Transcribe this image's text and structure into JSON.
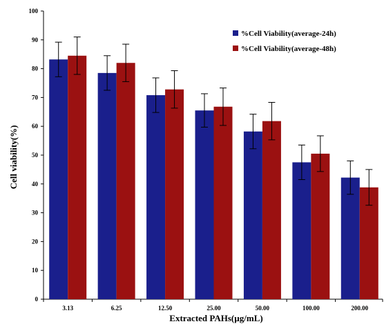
{
  "chart_data": {
    "type": "bar",
    "title": "",
    "xlabel": "Extracted PAHs(µg/mL)",
    "ylabel": "Cell viability(%)",
    "ylim": [
      0,
      100
    ],
    "yticks": [
      "0",
      "10",
      "20",
      "30",
      "40",
      "50",
      "60",
      "70",
      "80",
      "90",
      "100"
    ],
    "categories": [
      "3.13",
      "6.25",
      "12.50",
      "25.00",
      "50.00",
      "100.00",
      "200.00"
    ],
    "series": [
      {
        "name": "%Cell Viability(average-24h)",
        "color": "#1a1f8c",
        "values": [
          83.2,
          78.5,
          70.8,
          65.5,
          58.2,
          47.5,
          42.2
        ],
        "errors": [
          6.0,
          6.0,
          6.0,
          5.8,
          6.0,
          6.0,
          5.8
        ]
      },
      {
        "name": "%Cell Viability(average-48h)",
        "color": "#9b1111",
        "values": [
          84.5,
          82.0,
          72.8,
          66.8,
          61.8,
          50.5,
          38.8
        ],
        "errors": [
          6.5,
          6.5,
          6.5,
          6.5,
          6.5,
          6.2,
          6.2
        ]
      }
    ],
    "legend_position": "top-right",
    "grid": false
  }
}
